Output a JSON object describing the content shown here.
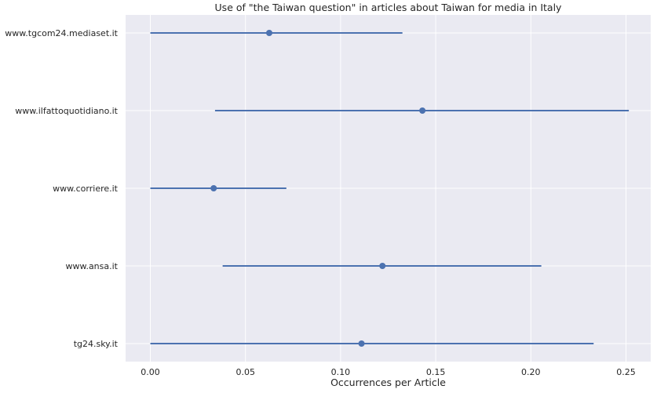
{
  "chart_data": {
    "type": "scatter",
    "title": "Use of \"the Taiwan question\" in articles about Taiwan for media in Italy",
    "xlabel": "Occurrences per Article",
    "ylabel": "",
    "xlim": [
      -0.013,
      0.263
    ],
    "xticks": [
      "0.00",
      "0.05",
      "0.10",
      "0.15",
      "0.20",
      "0.25"
    ],
    "grid": true,
    "legend": "none",
    "series_color": "#4c72b0",
    "background": "#eaeaf2",
    "categories": [
      "www.tgcom24.mediaset.it",
      "www.ilfattoquotidiano.it",
      "www.corriere.it",
      "www.ansa.it",
      "tg24.sky.it"
    ],
    "series": [
      {
        "values": [
          0.0625,
          0.143,
          0.0333,
          0.122,
          0.111
        ],
        "ci_low": [
          0.0,
          0.034,
          0.0,
          0.038,
          0.0
        ],
        "ci_high": [
          0.1325,
          0.2515,
          0.0715,
          0.2055,
          0.233
        ]
      }
    ]
  }
}
